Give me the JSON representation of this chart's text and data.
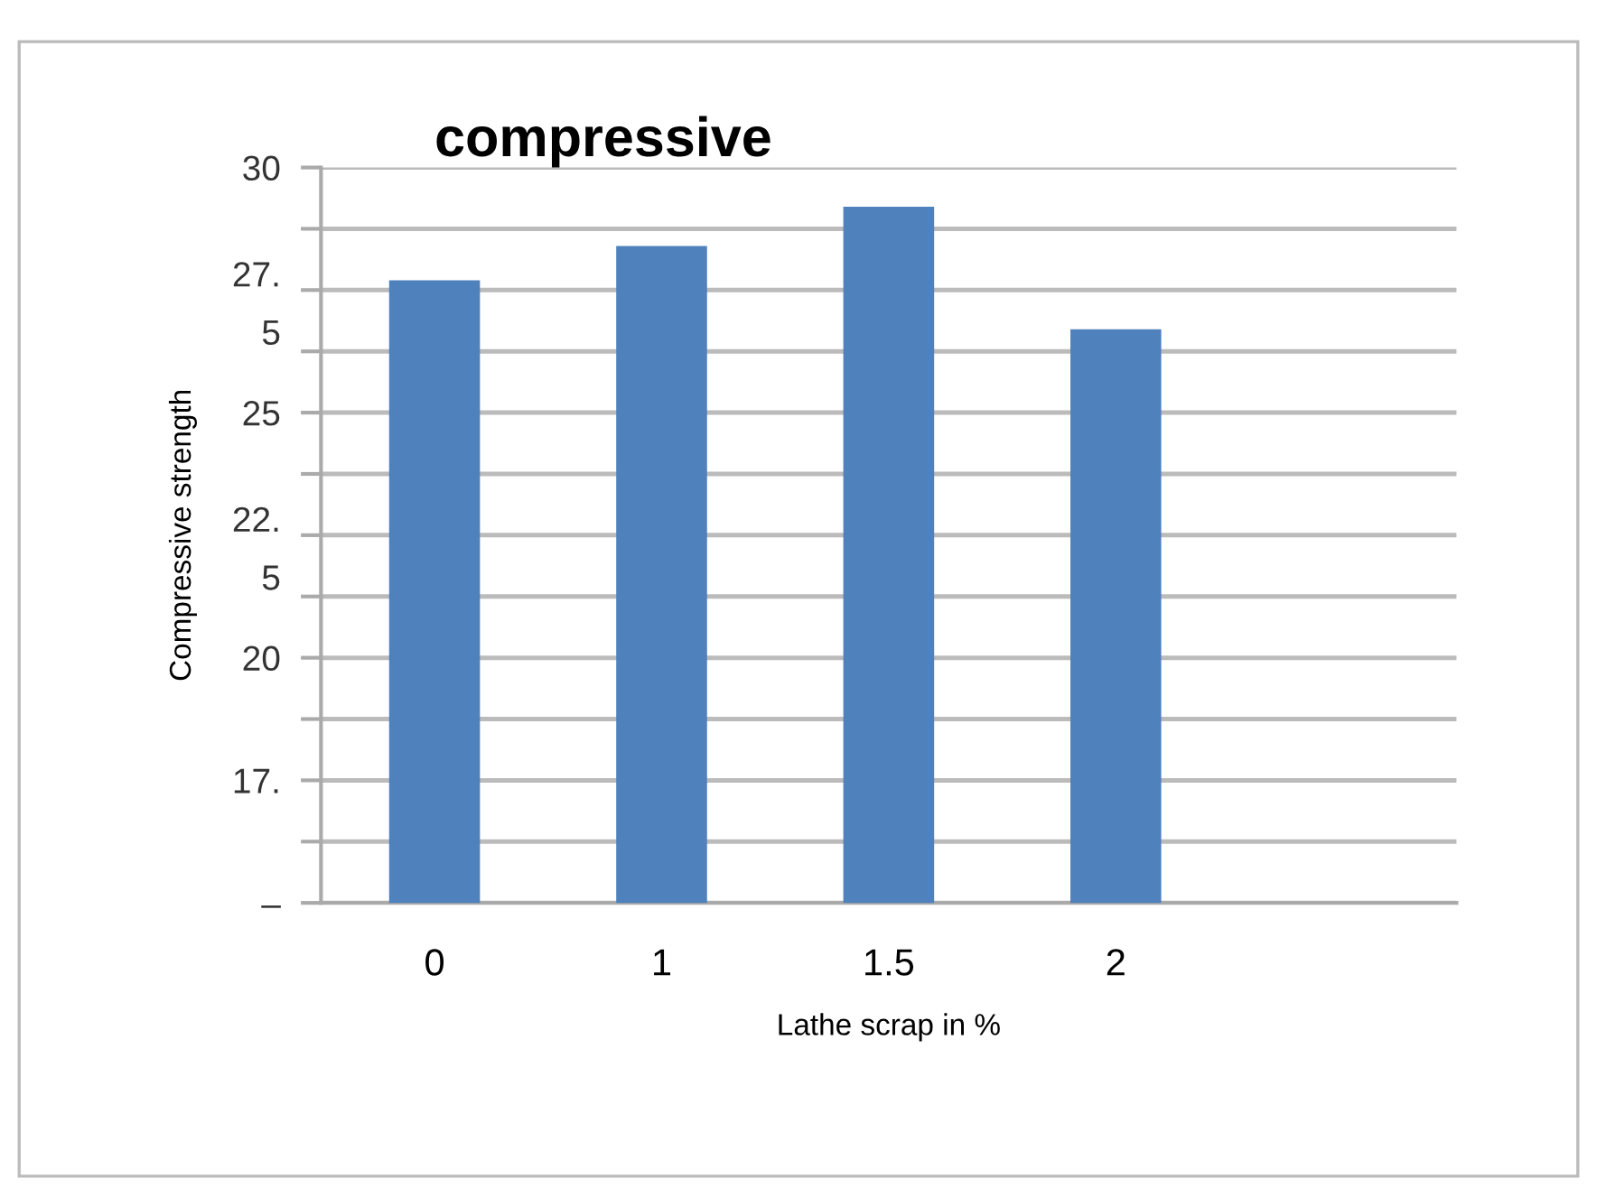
{
  "chart_data": {
    "type": "bar",
    "title": "compressive",
    "xlabel": "Lathe scrap in %",
    "ylabel": "Compressive strength",
    "categories": [
      "0",
      "1",
      "1.5",
      "2"
    ],
    "values": [
      27.7,
      28.4,
      29.2,
      26.7
    ],
    "color": "#4f81bd",
    "ylim": [
      15,
      30
    ],
    "yticks": [
      {
        "value": 15,
        "label": "–"
      },
      {
        "value": 16.25,
        "label": null
      },
      {
        "value": 17.5,
        "label": "17."
      },
      {
        "value": 18.75,
        "label": null
      },
      20,
      {
        "value": 21.25,
        "label": null
      },
      {
        "value": 22.5,
        "label": "22.\n5"
      },
      {
        "value": 23.75,
        "label": null
      },
      25,
      {
        "value": 26.25,
        "label": null
      },
      {
        "value": 27.5,
        "label": "27.\n5"
      },
      {
        "value": 28.75,
        "label": null
      },
      30
    ],
    "grid": "y"
  }
}
